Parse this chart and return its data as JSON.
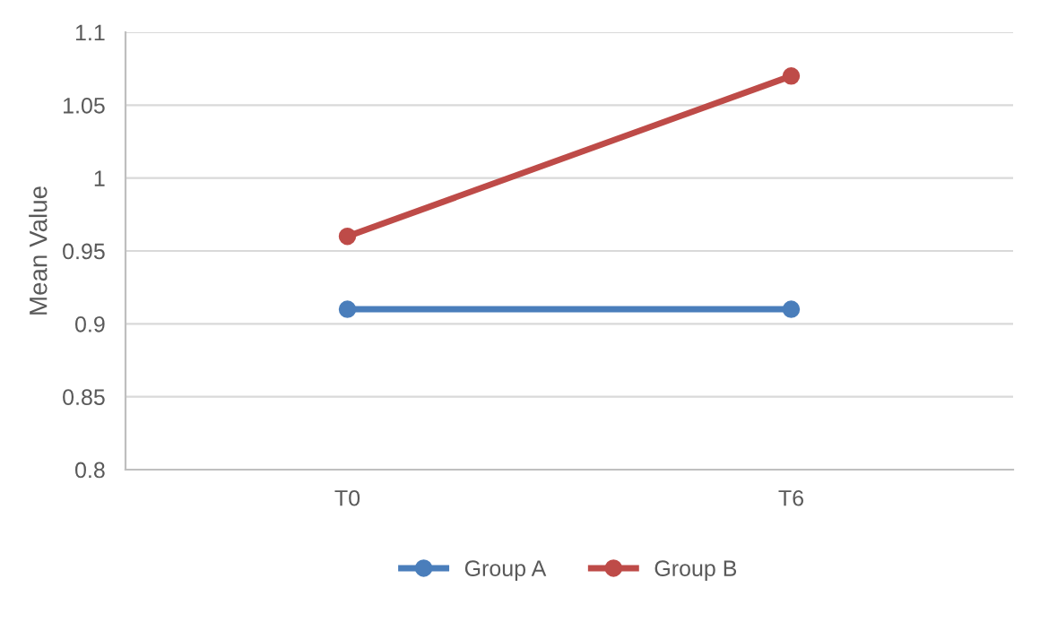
{
  "chart_data": {
    "type": "line",
    "ylabel": "Mean Value",
    "categories": [
      "T0",
      "T6"
    ],
    "series": [
      {
        "name": "Group A",
        "color": "#4a7ebb",
        "values": [
          0.91,
          0.91
        ]
      },
      {
        "name": "Group B",
        "color": "#be4b48",
        "values": [
          0.96,
          1.07
        ]
      }
    ],
    "ylim": [
      0.8,
      1.1
    ],
    "yticks": [
      0.8,
      0.85,
      0.9,
      0.95,
      1,
      1.05,
      1.1
    ],
    "grid": "y",
    "legend": "bottom",
    "marker": "circle",
    "line_style": "solid"
  }
}
